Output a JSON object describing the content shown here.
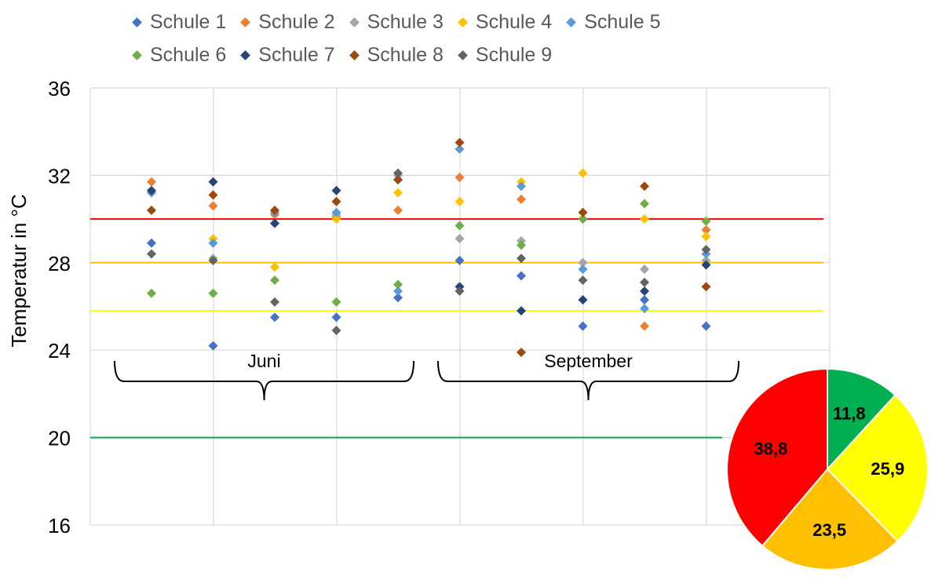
{
  "chart_data": {
    "type": "scatter",
    "ylabel": "Temperatur in °C",
    "ylim": [
      16,
      36
    ],
    "yticks": [
      16,
      20,
      24,
      28,
      32,
      36
    ],
    "grid": true,
    "legend_position": "top",
    "x_group_labels": [
      "Juni",
      "September"
    ],
    "series": [
      {
        "name": "Schule 1",
        "color": "#4472c4",
        "values": [
          28.9,
          24.2,
          25.5,
          25.5,
          26.4,
          28.1,
          27.4,
          25.1,
          26.3,
          25.1
        ]
      },
      {
        "name": "Schule 2",
        "color": "#ed7d31",
        "values": [
          31.7,
          30.6,
          30.2,
          30.1,
          30.4,
          31.9,
          30.9,
          30.0,
          25.1,
          29.5
        ]
      },
      {
        "name": "Schule 3",
        "color": "#a5a5a5",
        "values": [
          31.3,
          28.2,
          29.8,
          30.2,
          32.0,
          29.1,
          29.0,
          28.0,
          27.7,
          28.1
        ]
      },
      {
        "name": "Schule 4",
        "color": "#ffc000",
        "values": [
          31.2,
          29.1,
          27.8,
          30.0,
          31.2,
          30.8,
          31.7,
          32.1,
          30.0,
          29.2
        ]
      },
      {
        "name": "Schule 5",
        "color": "#5b9bd5",
        "values": [
          31.2,
          28.9,
          30.3,
          30.3,
          26.7,
          33.2,
          31.5,
          27.7,
          25.9,
          28.4
        ]
      },
      {
        "name": "Schule 6",
        "color": "#70ad47",
        "values": [
          26.6,
          26.6,
          27.2,
          26.2,
          27.0,
          29.7,
          28.8,
          30.0,
          30.7,
          29.9
        ]
      },
      {
        "name": "Schule 7",
        "color": "#264478",
        "values": [
          31.3,
          31.7,
          29.8,
          31.3,
          31.8,
          26.9,
          25.8,
          26.3,
          26.7,
          27.9
        ]
      },
      {
        "name": "Schule 8",
        "color": "#9e480e",
        "values": [
          30.4,
          31.1,
          30.4,
          30.8,
          31.8,
          33.5,
          23.9,
          30.3,
          31.5,
          26.9
        ]
      },
      {
        "name": "Schule 9",
        "color": "#636363",
        "values": [
          28.4,
          28.1,
          26.2,
          24.9,
          32.1,
          26.7,
          28.2,
          27.2,
          27.1,
          28.6
        ]
      }
    ],
    "reference_lines": [
      {
        "value": 30,
        "color": "#ff0000"
      },
      {
        "value": 28,
        "color": "#ffc000"
      },
      {
        "value": 25.8,
        "color": "#ffff00"
      },
      {
        "value": 20,
        "color": "#00b050"
      }
    ],
    "pie": {
      "type": "pie",
      "slices": [
        {
          "value": 11.8,
          "label": "11,8",
          "color": "#00b050"
        },
        {
          "value": 25.9,
          "label": "25,9",
          "color": "#ffff00"
        },
        {
          "value": 23.5,
          "label": "23,5",
          "color": "#ffc000"
        },
        {
          "value": 38.8,
          "label": "38,8",
          "color": "#ff0000"
        }
      ]
    }
  }
}
